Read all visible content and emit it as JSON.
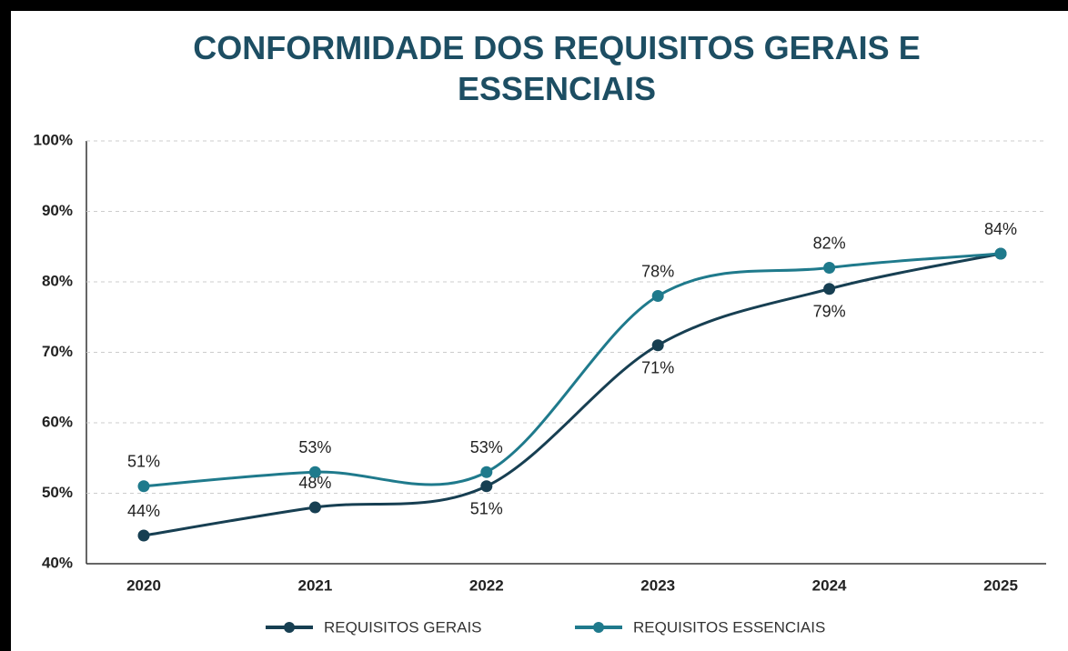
{
  "chart_data": {
    "type": "line",
    "title": "CONFORMIDADE DOS REQUISITOS GERAIS E ESSENCIAIS",
    "categories": [
      "2020",
      "2021",
      "2022",
      "2023",
      "2024",
      "2025"
    ],
    "series": [
      {
        "name": "REQUISITOS GERAIS",
        "color": "#173f52",
        "values": [
          44,
          48,
          51,
          71,
          79,
          84
        ],
        "value_labels": [
          "44%",
          "48%",
          "51%",
          "71%",
          "79%",
          "84%"
        ]
      },
      {
        "name": "REQUISITOS ESSENCIAIS",
        "color": "#1f7a8c",
        "values": [
          51,
          53,
          53,
          78,
          82,
          84
        ],
        "value_labels": [
          "51%",
          "53%",
          "53%",
          "78%",
          "82%",
          null
        ]
      }
    ],
    "ylim": [
      40,
      100
    ],
    "yticks": [
      {
        "value": 40,
        "label": "40%"
      },
      {
        "value": 50,
        "label": "50%"
      },
      {
        "value": 60,
        "label": "60%"
      },
      {
        "value": 70,
        "label": "70%"
      },
      {
        "value": 80,
        "label": "80%"
      },
      {
        "value": 90,
        "label": "90%"
      },
      {
        "value": 100,
        "label": "100%"
      }
    ],
    "grid": true
  }
}
